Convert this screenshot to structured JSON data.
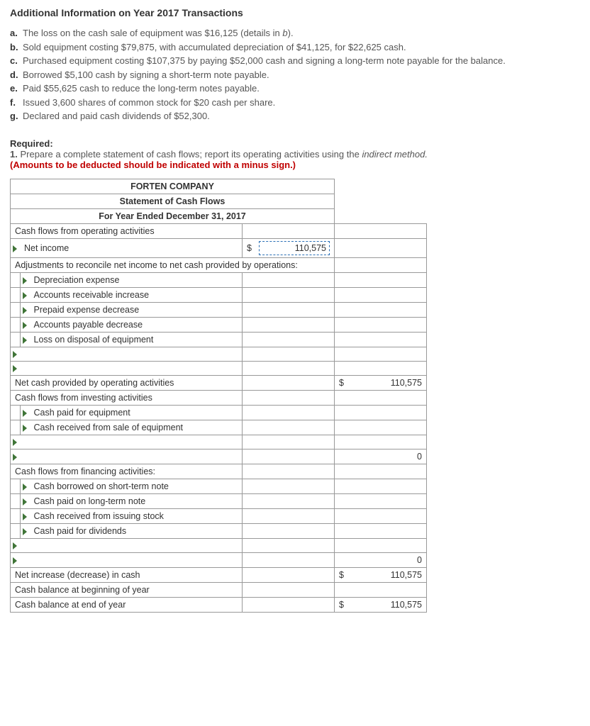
{
  "title": "Additional Information on Year 2017 Transactions",
  "items": {
    "a": "The loss on the cash sale of equipment was $16,125 (details in ",
    "a_italic": "b",
    "a_tail": ").",
    "b": "Sold equipment costing $79,875, with accumulated depreciation of $41,125, for $22,625 cash.",
    "c": "Purchased equipment costing $107,375 by paying $52,000 cash and signing a long-term note payable for the balance.",
    "d": "Borrowed $5,100 cash by signing a short-term note payable.",
    "e": "Paid $55,625 cash to reduce the long-term notes payable.",
    "f": "Issued 3,600 shares of common stock for $20 cash per share.",
    "g": "Declared and paid cash dividends of $52,300."
  },
  "required": {
    "label": "Required:",
    "num": "1.",
    "text": "Prepare a complete statement of cash flows; report its operating activities using the ",
    "italic": "indirect method.",
    "red": "(Amounts to be deducted should be indicated with a minus sign.)"
  },
  "table": {
    "company": "FORTEN COMPANY",
    "stmt_title": "Statement of Cash Flows",
    "period": "For Year Ended December 31, 2017",
    "rows": {
      "op_header": "Cash flows from operating activities",
      "net_income": "Net income",
      "net_income_val": "110,575",
      "adj_header": "Adjustments to reconcile net income to net cash provided by operations:",
      "dep": "Depreciation expense",
      "ar": "Accounts receivable increase",
      "ppd": "Prepaid expense decrease",
      "ap": "Accounts payable decrease",
      "loss": "Loss on disposal of equipment",
      "net_op": "Net cash provided by operating activities",
      "net_op_val": "110,575",
      "inv_header": "Cash flows from investing activities",
      "cash_paid_eq": "Cash paid for equipment",
      "cash_recv_eq": "Cash received from sale of equipment",
      "inv_total": "0",
      "fin_header": "Cash flows from financing activities:",
      "borrow_st": "Cash borrowed on short-term note",
      "paid_lt": "Cash paid on long-term note",
      "stock": "Cash received from issuing stock",
      "div": "Cash paid for dividends",
      "fin_total": "0",
      "net_change": "Net increase (decrease) in cash",
      "net_change_val": "110,575",
      "beg_bal": "Cash balance at beginning of year",
      "end_bal": "Cash balance at end of year",
      "end_bal_val": "110,575"
    },
    "dollar": "$"
  },
  "colors": {
    "header_bg": "#5e9cd3",
    "triangle": "#407538",
    "red": "#c00000",
    "border": "#999999"
  }
}
